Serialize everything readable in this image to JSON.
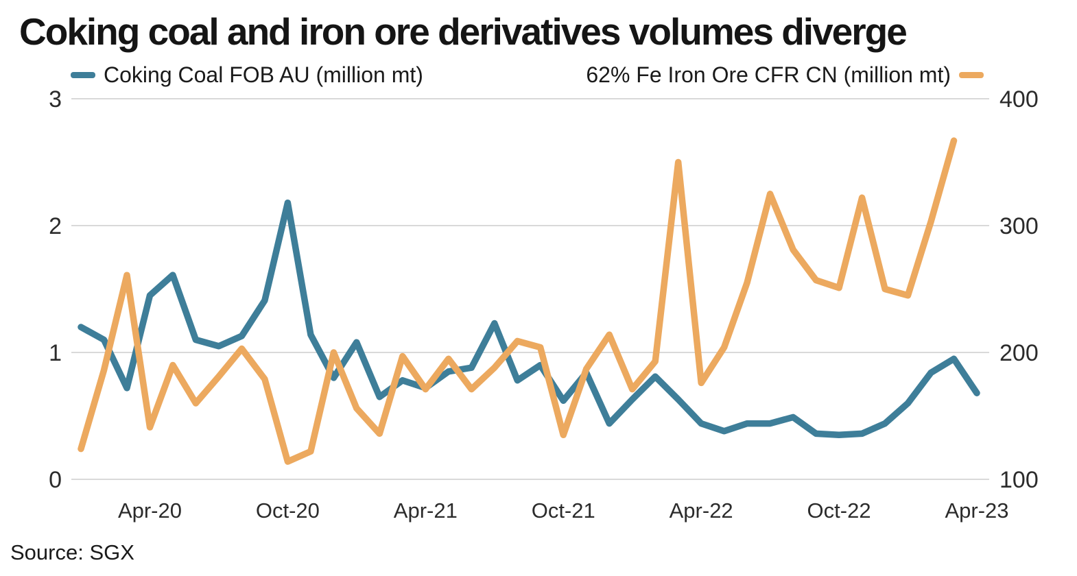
{
  "chart_data": {
    "type": "line",
    "title": "Coking coal and iron ore derivatives volumes diverge",
    "source": "Source: SGX",
    "grid": "horizontal",
    "legend_position": "top",
    "categories": [
      "Jan-20",
      "Feb-20",
      "Mar-20",
      "Apr-20",
      "May-20",
      "Jun-20",
      "Jul-20",
      "Aug-20",
      "Sep-20",
      "Oct-20",
      "Nov-20",
      "Dec-20",
      "Jan-21",
      "Feb-21",
      "Mar-21",
      "Apr-21",
      "May-21",
      "Jun-21",
      "Jul-21",
      "Aug-21",
      "Sep-21",
      "Oct-21",
      "Nov-21",
      "Dec-21",
      "Jan-22",
      "Feb-22",
      "Mar-22",
      "Apr-22",
      "May-22",
      "Jun-22",
      "Jul-22",
      "Aug-22",
      "Sep-22",
      "Oct-22",
      "Nov-22",
      "Dec-22",
      "Jan-23",
      "Feb-23",
      "Mar-23",
      "Apr-23"
    ],
    "x_tick_labels": [
      "Apr-20",
      "Oct-20",
      "Apr-21",
      "Oct-21",
      "Apr-22",
      "Oct-22",
      "Apr-23"
    ],
    "left_axis": {
      "min": 0,
      "max": 3,
      "ticks": [
        0,
        1,
        2,
        3
      ]
    },
    "right_axis": {
      "min": 100,
      "max": 400,
      "ticks": [
        100,
        200,
        300,
        400
      ]
    },
    "series": [
      {
        "name": "Coking Coal FOB AU (million mt)",
        "axis": "left",
        "color": "#3E7E99",
        "values": [
          1.2,
          1.1,
          0.72,
          1.45,
          1.61,
          1.1,
          1.05,
          1.13,
          1.41,
          2.18,
          1.14,
          0.8,
          1.08,
          0.65,
          0.78,
          0.72,
          0.85,
          0.88,
          1.23,
          0.78,
          0.9,
          0.62,
          0.84,
          0.44,
          0.63,
          0.81,
          0.63,
          0.44,
          0.38,
          0.44,
          0.44,
          0.49,
          0.36,
          0.35,
          0.36,
          0.44,
          0.6,
          0.84,
          0.95,
          0.68
        ]
      },
      {
        "name": "62% Fe Iron Ore CFR CN (million mt)",
        "axis": "right",
        "color": "#ECA95F",
        "values": [
          124,
          186,
          261,
          141,
          190,
          160,
          181,
          203,
          179,
          114,
          122,
          200,
          156,
          136,
          197,
          171,
          195,
          171,
          188,
          209,
          204,
          135,
          187,
          214,
          171,
          193,
          350,
          176,
          204,
          255,
          325,
          281,
          257,
          251,
          322,
          250,
          245,
          303,
          367,
          null
        ]
      }
    ],
    "colors": {
      "grid": "#d9d9d9",
      "tick_text": "#2b2b2b"
    }
  }
}
